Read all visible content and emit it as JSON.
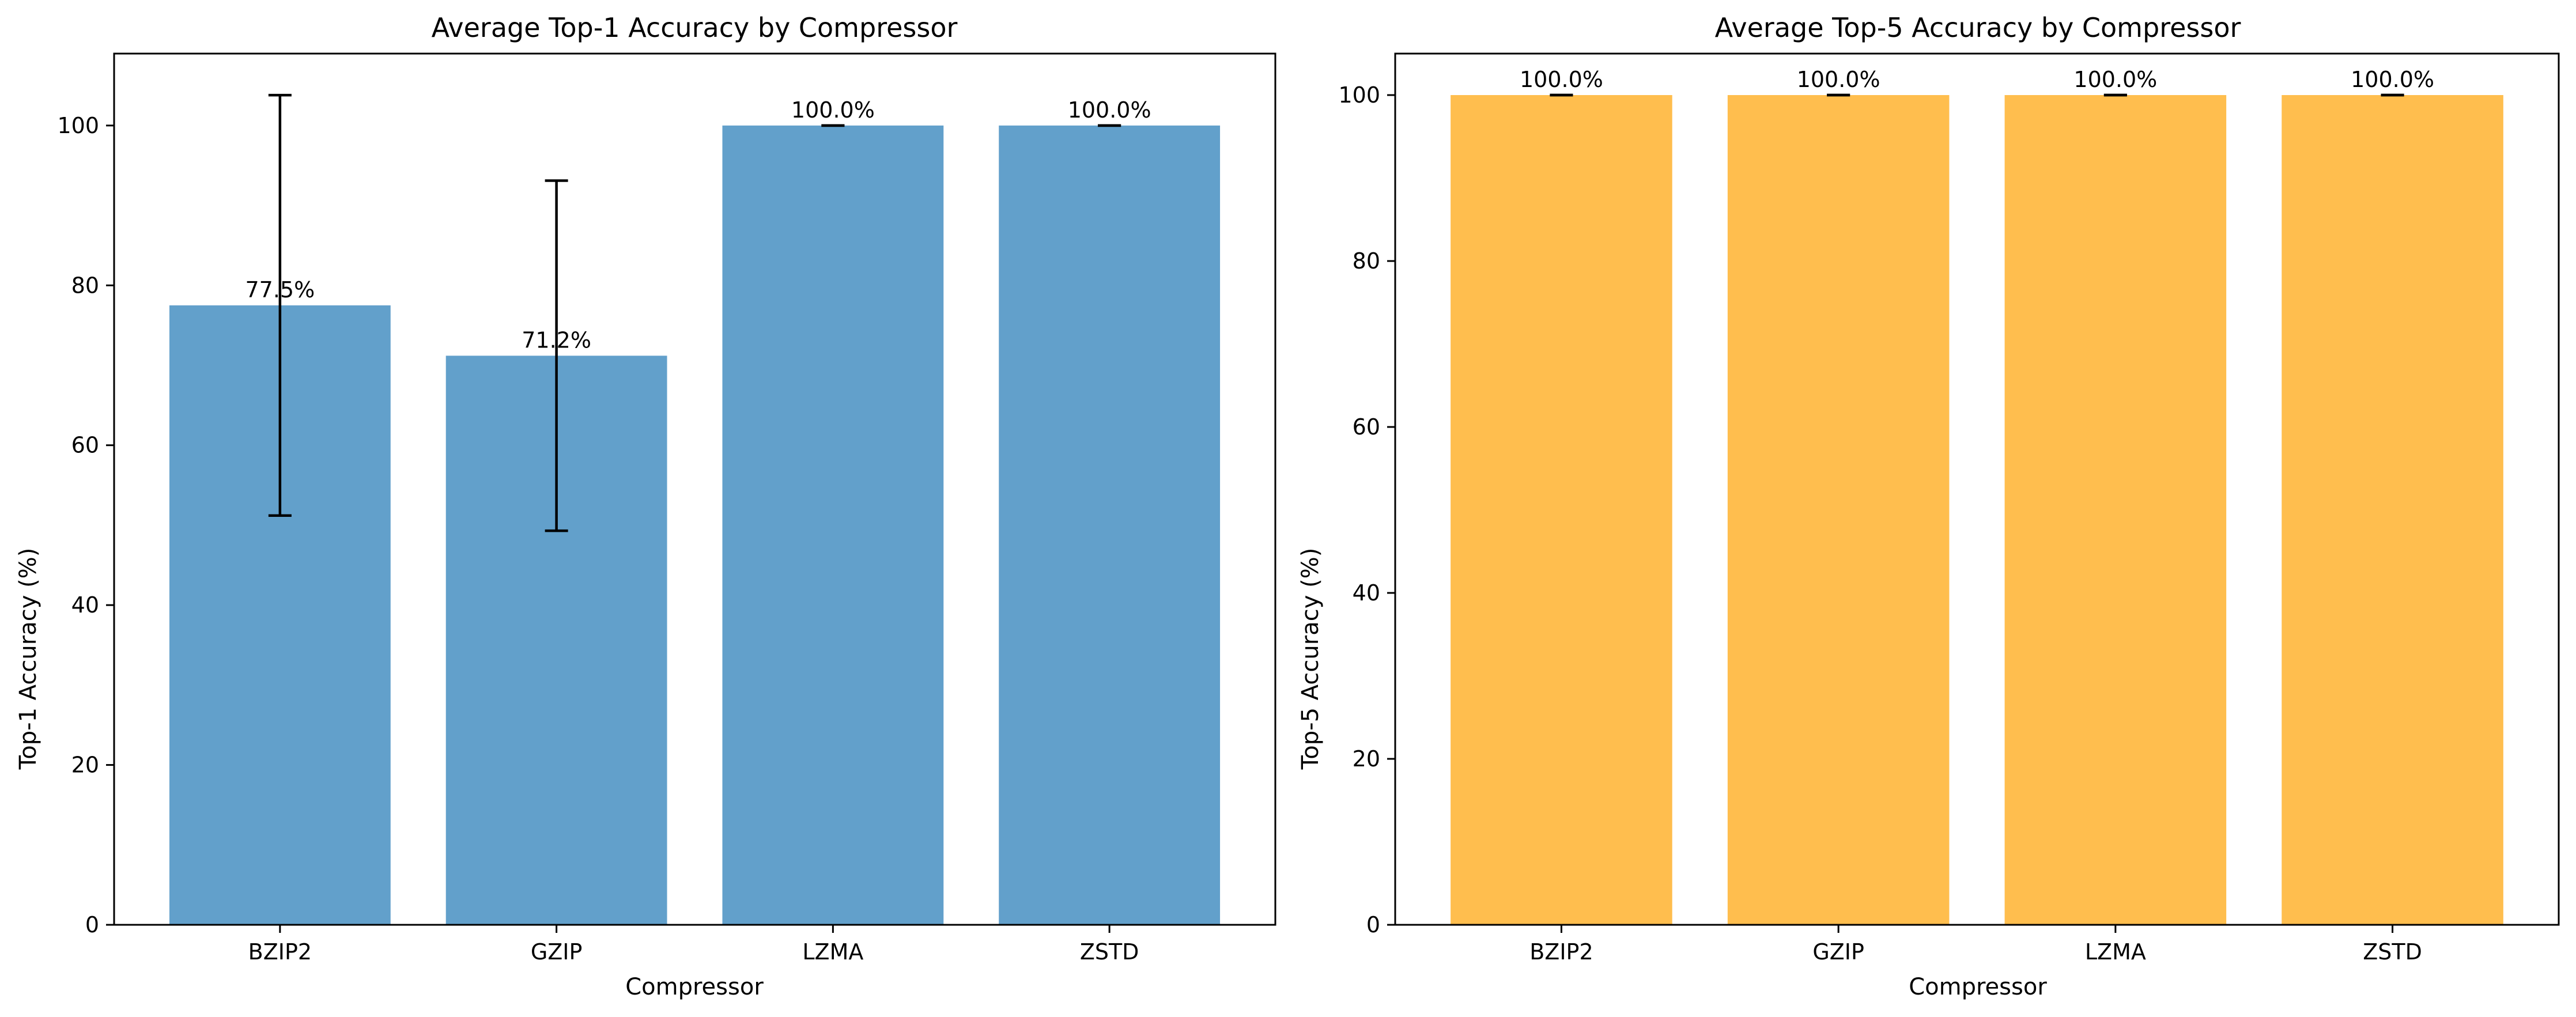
{
  "chart_data": [
    {
      "type": "bar",
      "title": "Average Top-1 Accuracy by Compressor",
      "xlabel": "Compressor",
      "ylabel": "Top-1 Accuracy (%)",
      "categories": [
        "BZIP2",
        "GZIP",
        "LZMA",
        "ZSTD"
      ],
      "values": [
        77.5,
        71.2,
        100.0,
        100.0
      ],
      "error": [
        26.3,
        21.9,
        0.0,
        0.0
      ],
      "labels": [
        "77.5%",
        "71.2%",
        "100.0%",
        "100.0%"
      ],
      "ylim": [
        0,
        109
      ],
      "yticks": [
        0,
        20,
        40,
        60,
        80,
        100
      ],
      "color": "#62a0cb",
      "grid": false,
      "legend": "none"
    },
    {
      "type": "bar",
      "title": "Average Top-5 Accuracy by Compressor",
      "xlabel": "Compressor",
      "ylabel": "Top-5 Accuracy (%)",
      "categories": [
        "BZIP2",
        "GZIP",
        "LZMA",
        "ZSTD"
      ],
      "values": [
        100.0,
        100.0,
        100.0,
        100.0
      ],
      "error": [
        0.0,
        0.0,
        0.0,
        0.0
      ],
      "labels": [
        "100.0%",
        "100.0%",
        "100.0%",
        "100.0%"
      ],
      "ylim": [
        0,
        105
      ],
      "yticks": [
        0,
        20,
        40,
        60,
        80,
        100
      ],
      "color": "#ffbe4e",
      "grid": false,
      "legend": "none"
    }
  ]
}
